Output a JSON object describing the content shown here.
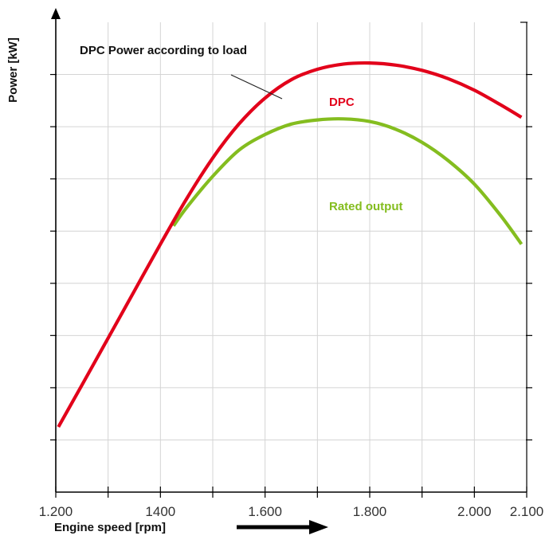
{
  "chart_data": {
    "type": "line",
    "title": "",
    "xlabel": "Engine speed [rpm]",
    "ylabel": "Power [kW]",
    "xlim": [
      1200,
      2100
    ],
    "x_ticks": [
      1200,
      1300,
      1400,
      1500,
      1600,
      1700,
      1800,
      1900,
      2000,
      2100
    ],
    "x_tick_labels": [
      "1.200",
      "",
      "1400",
      "",
      "1.600",
      "",
      "1.800",
      "",
      "2.000",
      "2.100"
    ],
    "ylim": [
      0,
      9
    ],
    "y_ticks": [
      1,
      2,
      3,
      4,
      5,
      6,
      7,
      8
    ],
    "grid": true,
    "annotation": "DPC Power according to load",
    "series": [
      {
        "name": "DPC",
        "color": "#e2001a",
        "x": [
          1205,
          1250,
          1300,
          1350,
          1400,
          1450,
          1500,
          1550,
          1600,
          1650,
          1700,
          1750,
          1800,
          1850,
          1900,
          1950,
          2000,
          2050,
          2090
        ],
        "y": [
          1.25,
          2.05,
          2.95,
          3.85,
          4.75,
          5.62,
          6.4,
          7.05,
          7.55,
          7.9,
          8.1,
          8.2,
          8.22,
          8.18,
          8.08,
          7.92,
          7.7,
          7.42,
          7.18
        ]
      },
      {
        "name": "Rated output",
        "color": "#84bd1f",
        "x": [
          1425,
          1450,
          1500,
          1550,
          1600,
          1650,
          1700,
          1750,
          1800,
          1850,
          1900,
          1950,
          2000,
          2050,
          2090
        ],
        "y": [
          5.1,
          5.45,
          6.05,
          6.55,
          6.85,
          7.05,
          7.13,
          7.15,
          7.1,
          6.95,
          6.7,
          6.35,
          5.9,
          5.3,
          4.75
        ]
      }
    ]
  },
  "labels": {
    "ylabel": "Power [kW]",
    "xlabel": "Engine speed [rpm]",
    "annotation": "DPC Power according to load",
    "series_dpc": "DPC",
    "series_rated": "Rated output"
  }
}
